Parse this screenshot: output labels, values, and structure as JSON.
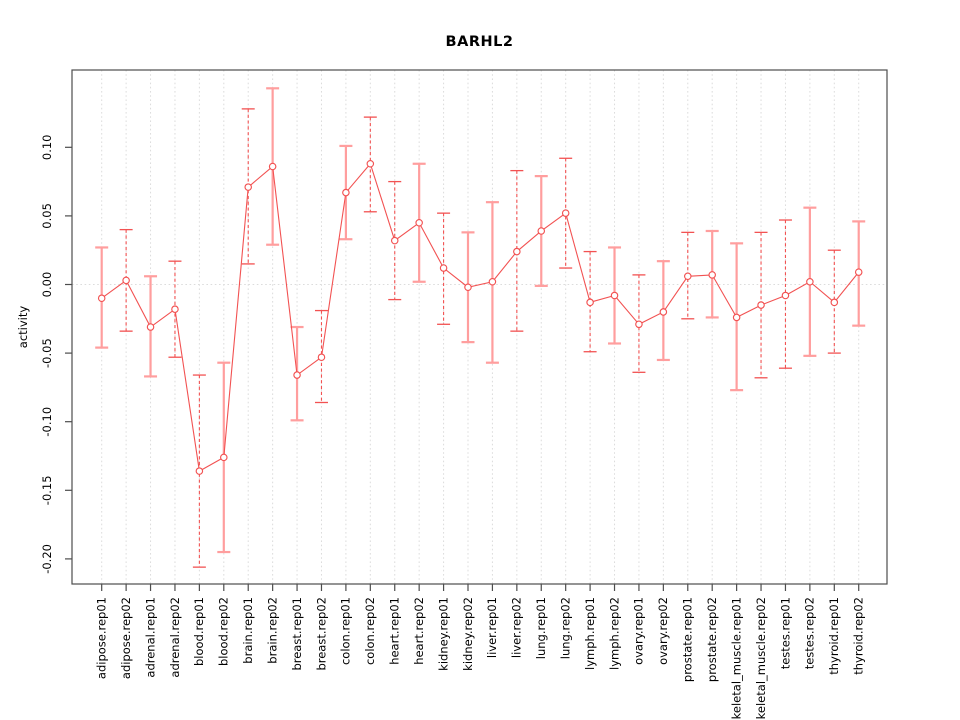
{
  "figure": {
    "title": "BARHL2",
    "background": "#ffffff"
  },
  "chart_data": {
    "type": "line",
    "title": "BARHL2",
    "xlabel": "",
    "ylabel": "activity",
    "ylim": [
      -0.218,
      0.156
    ],
    "yticks": [
      0.1,
      0.05,
      0.0,
      -0.05,
      -0.1,
      -0.15,
      -0.2
    ],
    "grid": {
      "vertical": "dotted line at every category",
      "horizontal": "dotted line at y=0 only"
    },
    "legend_position": "none",
    "error_bars": true,
    "categories": [
      "adipose.rep01",
      "adipose.rep02",
      "adrenal.rep01",
      "adrenal.rep02",
      "blood.rep01",
      "blood.rep02",
      "brain.rep01",
      "brain.rep02",
      "breast.rep01",
      "breast.rep02",
      "colon.rep01",
      "colon.rep02",
      "heart.rep01",
      "heart.rep02",
      "kidney.rep01",
      "kidney.rep02",
      "liver.rep01",
      "liver.rep02",
      "lung.rep01",
      "lung.rep02",
      "lymph.rep01",
      "lymph.rep02",
      "ovary.rep01",
      "ovary.rep02",
      "prostate.rep01",
      "prostate.rep02",
      "skeletal_muscle.rep01",
      "skeletal_muscle.rep02",
      "testes.rep01",
      "testes.rep02",
      "thyroid.rep01",
      "thyroid.rep02"
    ],
    "series": [
      {
        "name": "activity",
        "values": [
          -0.01,
          0.003,
          -0.031,
          -0.018,
          -0.136,
          -0.126,
          0.071,
          0.086,
          -0.066,
          -0.053,
          0.067,
          0.088,
          0.032,
          0.045,
          0.012,
          -0.002,
          0.002,
          0.024,
          0.039,
          0.052,
          -0.013,
          -0.008,
          -0.029,
          -0.02,
          0.006,
          0.007,
          -0.024,
          -0.015,
          -0.008,
          0.002,
          -0.013,
          0.009
        ],
        "error_low": [
          -0.046,
          -0.034,
          -0.067,
          -0.053,
          -0.206,
          -0.195,
          0.015,
          0.029,
          -0.099,
          -0.086,
          0.033,
          0.053,
          -0.011,
          0.002,
          -0.029,
          -0.042,
          -0.057,
          -0.034,
          -0.001,
          0.012,
          -0.049,
          -0.043,
          -0.064,
          -0.055,
          -0.025,
          -0.024,
          -0.077,
          -0.068,
          -0.061,
          -0.052,
          -0.05,
          -0.03
        ],
        "error_high": [
          0.027,
          0.04,
          0.006,
          0.017,
          -0.066,
          -0.057,
          0.128,
          0.143,
          -0.031,
          -0.019,
          0.101,
          0.122,
          0.075,
          0.088,
          0.052,
          0.038,
          0.06,
          0.083,
          0.079,
          0.092,
          0.024,
          0.027,
          0.007,
          0.017,
          0.038,
          0.039,
          0.03,
          0.038,
          0.047,
          0.056,
          0.025,
          0.046
        ],
        "bar_styles": [
          "solid",
          "dashed",
          "solid",
          "dashed",
          "dashed",
          "solid",
          "dashed",
          "solid",
          "solid",
          "dashed",
          "solid",
          "dashed",
          "dashed",
          "solid",
          "dashed",
          "solid",
          "solid",
          "dashed",
          "solid",
          "dashed",
          "dashed",
          "solid",
          "dashed",
          "solid",
          "dashed",
          "solid",
          "solid",
          "dashed",
          "dashed",
          "solid",
          "dashed",
          "solid"
        ]
      }
    ],
    "colors": {
      "point_and_line": "#f25252",
      "error_bar_solid": "#ff9e9e",
      "error_bar_dashed": "#f25252",
      "gridline": "#dcdcdc",
      "zero_line": "#dcdcdc",
      "axis_frame": "#4d4d4d",
      "text": "#000000",
      "point_fill": "#ffffff"
    }
  }
}
